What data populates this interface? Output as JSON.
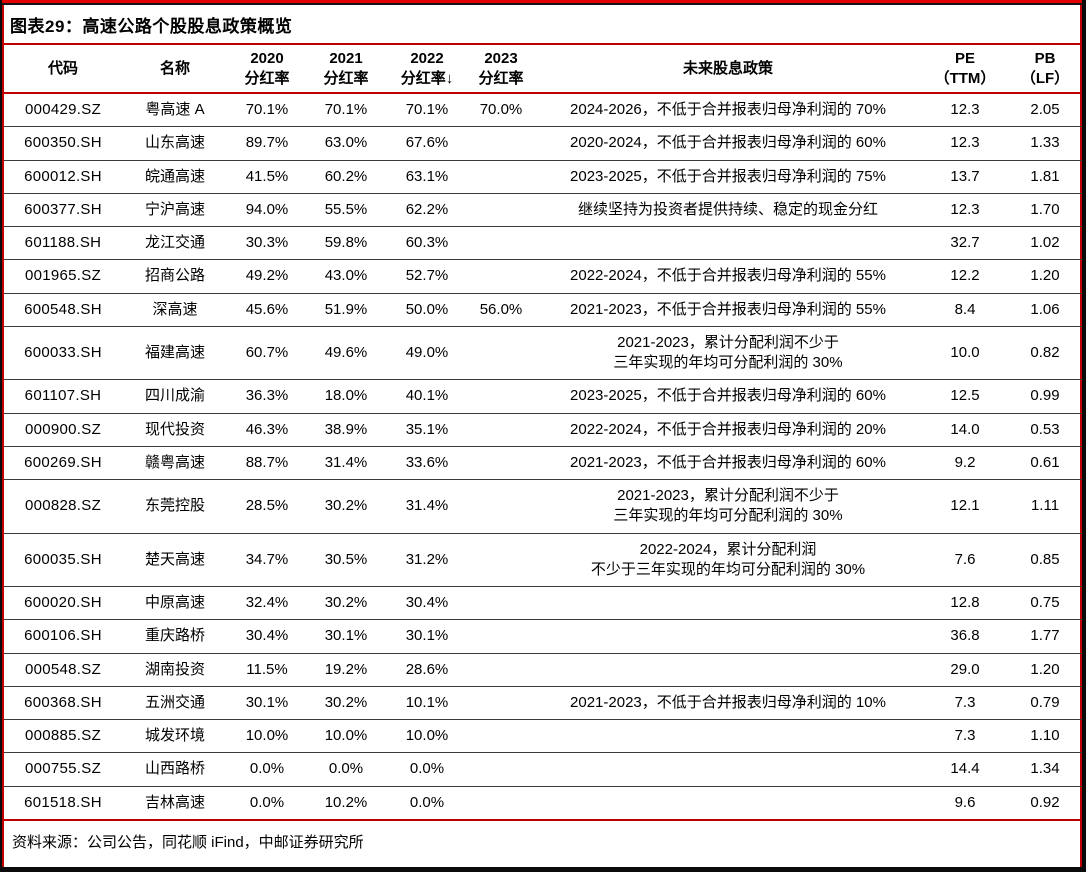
{
  "figure": {
    "title": "图表29：高速公路个股股息政策概览",
    "source": "资料来源：公司公告，同花顺 iFind，中邮证券研究所"
  },
  "colors": {
    "accent_red": "#c00000",
    "row_divider": "#3c3c3c",
    "top_bar_red": "#e00000",
    "frame_black": "#0a0a0a"
  },
  "icons": {
    "sort_descending": "↓"
  },
  "table": {
    "headers": [
      {
        "label": "代码"
      },
      {
        "label": "名称"
      },
      {
        "label": "2020\n分红率"
      },
      {
        "label": "2021\n分红率"
      },
      {
        "label": "2022\n分红率↓",
        "sort": "desc"
      },
      {
        "label": "2023\n分红率"
      },
      {
        "label": "未来股息政策"
      },
      {
        "label": "PE\n（TTM）"
      },
      {
        "label": "PB\n（LF）"
      }
    ],
    "rows": [
      {
        "code": "000429.SZ",
        "name": "粤高速 A",
        "y2020": "70.1%",
        "y2021": "70.1%",
        "y2022": "70.1%",
        "y2023": "70.0%",
        "policy": "2024-2026，不低于合并报表归母净利润的 70%",
        "pe": "12.3",
        "pb": "2.05"
      },
      {
        "code": "600350.SH",
        "name": "山东高速",
        "y2020": "89.7%",
        "y2021": "63.0%",
        "y2022": "67.6%",
        "y2023": "",
        "policy": "2020-2024，不低于合并报表归母净利润的 60%",
        "pe": "12.3",
        "pb": "1.33"
      },
      {
        "code": "600012.SH",
        "name": "皖通高速",
        "y2020": "41.5%",
        "y2021": "60.2%",
        "y2022": "63.1%",
        "y2023": "",
        "policy": "2023-2025，不低于合并报表归母净利润的 75%",
        "pe": "13.7",
        "pb": "1.81"
      },
      {
        "code": "600377.SH",
        "name": "宁沪高速",
        "y2020": "94.0%",
        "y2021": "55.5%",
        "y2022": "62.2%",
        "y2023": "",
        "policy": "继续坚持为投资者提供持续、稳定的现金分红",
        "pe": "12.3",
        "pb": "1.70"
      },
      {
        "code": "601188.SH",
        "name": "龙江交通",
        "y2020": "30.3%",
        "y2021": "59.8%",
        "y2022": "60.3%",
        "y2023": "",
        "policy": "",
        "pe": "32.7",
        "pb": "1.02"
      },
      {
        "code": "001965.SZ",
        "name": "招商公路",
        "y2020": "49.2%",
        "y2021": "43.0%",
        "y2022": "52.7%",
        "y2023": "",
        "policy": "2022-2024，不低于合并报表归母净利润的 55%",
        "pe": "12.2",
        "pb": "1.20"
      },
      {
        "code": "600548.SH",
        "name": "深高速",
        "y2020": "45.6%",
        "y2021": "51.9%",
        "y2022": "50.0%",
        "y2023": "56.0%",
        "policy": "2021-2023，不低于合并报表归母净利润的 55%",
        "pe": "8.4",
        "pb": "1.06"
      },
      {
        "code": "600033.SH",
        "name": "福建高速",
        "y2020": "60.7%",
        "y2021": "49.6%",
        "y2022": "49.0%",
        "y2023": "",
        "policy": "2021-2023，累计分配利润不少于\n三年实现的年均可分配利润的 30%",
        "pe": "10.0",
        "pb": "0.82"
      },
      {
        "code": "601107.SH",
        "name": "四川成渝",
        "y2020": "36.3%",
        "y2021": "18.0%",
        "y2022": "40.1%",
        "y2023": "",
        "policy": "2023-2025，不低于合并报表归母净利润的 60%",
        "pe": "12.5",
        "pb": "0.99"
      },
      {
        "code": "000900.SZ",
        "name": "现代投资",
        "y2020": "46.3%",
        "y2021": "38.9%",
        "y2022": "35.1%",
        "y2023": "",
        "policy": "2022-2024，不低于合并报表归母净利润的 20%",
        "pe": "14.0",
        "pb": "0.53"
      },
      {
        "code": "600269.SH",
        "name": "赣粤高速",
        "y2020": "88.7%",
        "y2021": "31.4%",
        "y2022": "33.6%",
        "y2023": "",
        "policy": "2021-2023，不低于合并报表归母净利润的 60%",
        "pe": "9.2",
        "pb": "0.61"
      },
      {
        "code": "000828.SZ",
        "name": "东莞控股",
        "y2020": "28.5%",
        "y2021": "30.2%",
        "y2022": "31.4%",
        "y2023": "",
        "policy": "2021-2023，累计分配利润不少于\n三年实现的年均可分配利润的 30%",
        "pe": "12.1",
        "pb": "1.11"
      },
      {
        "code": "600035.SH",
        "name": "楚天高速",
        "y2020": "34.7%",
        "y2021": "30.5%",
        "y2022": "31.2%",
        "y2023": "",
        "policy": "2022-2024，累计分配利润\n不少于三年实现的年均可分配利润的 30%",
        "pe": "7.6",
        "pb": "0.85"
      },
      {
        "code": "600020.SH",
        "name": "中原高速",
        "y2020": "32.4%",
        "y2021": "30.2%",
        "y2022": "30.4%",
        "y2023": "",
        "policy": "",
        "pe": "12.8",
        "pb": "0.75"
      },
      {
        "code": "600106.SH",
        "name": "重庆路桥",
        "y2020": "30.4%",
        "y2021": "30.1%",
        "y2022": "30.1%",
        "y2023": "",
        "policy": "",
        "pe": "36.8",
        "pb": "1.77"
      },
      {
        "code": "000548.SZ",
        "name": "湖南投资",
        "y2020": "11.5%",
        "y2021": "19.2%",
        "y2022": "28.6%",
        "y2023": "",
        "policy": "",
        "pe": "29.0",
        "pb": "1.20"
      },
      {
        "code": "600368.SH",
        "name": "五洲交通",
        "y2020": "30.1%",
        "y2021": "30.2%",
        "y2022": "10.1%",
        "y2023": "",
        "policy": "2021-2023，不低于合并报表归母净利润的 10%",
        "pe": "7.3",
        "pb": "0.79"
      },
      {
        "code": "000885.SZ",
        "name": "城发环境",
        "y2020": "10.0%",
        "y2021": "10.0%",
        "y2022": "10.0%",
        "y2023": "",
        "policy": "",
        "pe": "7.3",
        "pb": "1.10"
      },
      {
        "code": "000755.SZ",
        "name": "山西路桥",
        "y2020": "0.0%",
        "y2021": "0.0%",
        "y2022": "0.0%",
        "y2023": "",
        "policy": "",
        "pe": "14.4",
        "pb": "1.34"
      },
      {
        "code": "601518.SH",
        "name": "吉林高速",
        "y2020": "0.0%",
        "y2021": "10.2%",
        "y2022": "0.0%",
        "y2023": "",
        "policy": "",
        "pe": "9.6",
        "pb": "0.92"
      }
    ]
  }
}
